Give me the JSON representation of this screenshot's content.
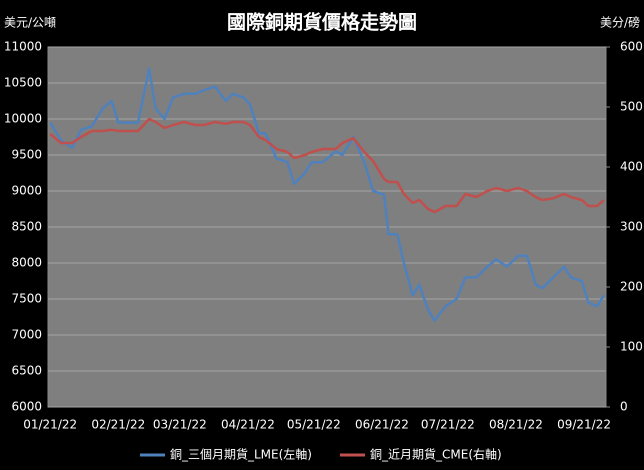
{
  "chart_data": {
    "type": "line",
    "title": "國際銅期貨價格走勢圖",
    "y_axis_label": "美元/公噸",
    "y2_axis_label": "美分/磅",
    "x": [
      "01/21/22",
      "01/26/22",
      "01/31/22",
      "02/04/22",
      "02/09/22",
      "02/14/22",
      "02/18/22",
      "02/21/22",
      "02/25/22",
      "03/02/22",
      "03/07/22",
      "03/10/22",
      "03/14/22",
      "03/18/22",
      "03/23/22",
      "03/28/22",
      "04/01/22",
      "04/06/22",
      "04/11/22",
      "04/14/22",
      "04/19/22",
      "04/22/22",
      "04/26/22",
      "04/29/22",
      "05/04/22",
      "05/09/22",
      "05/12/22",
      "05/17/22",
      "05/20/22",
      "05/25/22",
      "05/31/22",
      "06/03/22",
      "06/08/22",
      "06/13/22",
      "06/17/22",
      "06/22/22",
      "06/24/22",
      "06/28/22",
      "07/01/22",
      "07/05/22",
      "07/08/22",
      "07/12/22",
      "07/15/22",
      "07/20/22",
      "07/25/22",
      "07/29/22",
      "08/03/22",
      "08/08/22",
      "08/12/22",
      "08/17/22",
      "08/22/22",
      "08/26/22",
      "08/30/22",
      "09/02/22",
      "09/07/22",
      "09/12/22",
      "09/15/22",
      "09/20/22",
      "09/23/22",
      "09/27/22",
      "09/30/22"
    ],
    "series": [
      {
        "name": "銅_三個月期貨_LME(左軸)",
        "color": "#4f81bd",
        "values": [
          9950,
          9700,
          9600,
          9850,
          9900,
          10150,
          10250,
          9950,
          9950,
          9950,
          10700,
          10150,
          10000,
          10300,
          10350,
          10350,
          10400,
          10450,
          10250,
          10350,
          10300,
          10200,
          9800,
          9800,
          9450,
          9400,
          9100,
          9250,
          9400,
          9400,
          9550,
          9500,
          9750,
          9400,
          9000,
          8950,
          8400,
          8400,
          8000,
          7550,
          7700,
          7350,
          7200,
          7400,
          7500,
          7800,
          7800,
          7950,
          8050,
          7950,
          8100,
          8100,
          7700,
          7650,
          7800,
          7950,
          7800,
          7750,
          7450,
          7400,
          7550
        ]
      },
      {
        "name": "銅_近月期貨_CME(右軸)",
        "color": "#c0504d",
        "axis": "y2",
        "values": [
          455,
          440,
          440,
          450,
          460,
          460,
          462,
          460,
          460,
          460,
          480,
          475,
          465,
          470,
          475,
          470,
          470,
          475,
          472,
          475,
          475,
          470,
          450,
          445,
          430,
          425,
          415,
          420,
          425,
          430,
          430,
          440,
          448,
          425,
          410,
          380,
          375,
          375,
          355,
          340,
          345,
          330,
          325,
          335,
          335,
          355,
          350,
          360,
          365,
          360,
          365,
          360,
          350,
          345,
          348,
          355,
          350,
          345,
          335,
          335,
          345
        ]
      }
    ],
    "xlim": [
      "01/20/22",
      "10/01/22"
    ],
    "xticks": [
      "01/21/22",
      "02/21/22",
      "03/21/22",
      "04/21/22",
      "05/21/22",
      "06/21/22",
      "07/21/22",
      "08/21/22",
      "09/21/22"
    ],
    "ylim": [
      6000,
      11000
    ],
    "yticks": [
      6000,
      6500,
      7000,
      7500,
      8000,
      8500,
      9000,
      9500,
      10000,
      10500,
      11000
    ],
    "y2lim": [
      0,
      600
    ],
    "y2ticks": [
      0,
      100,
      200,
      300,
      400,
      500,
      600
    ],
    "grid": true,
    "legend": "bottom"
  }
}
